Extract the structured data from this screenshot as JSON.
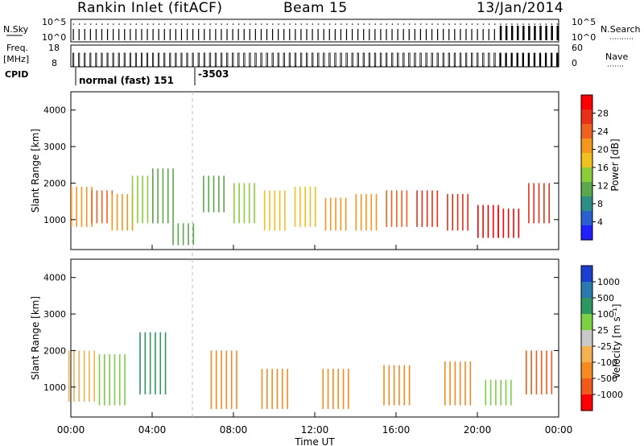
{
  "header": {
    "station": "Rankin Inlet (fitACF)",
    "beam": "Beam 15",
    "date": "13/Jan/2014"
  },
  "strips": {
    "nsky": {
      "label": "N.Sky",
      "ticks": [
        "10^5",
        "10^0"
      ],
      "right_ticks": [
        "10^5",
        "10^0"
      ],
      "right_label": "N.Search"
    },
    "freq": {
      "label": "Freq.",
      "unit": "[MHz]",
      "ticks": [
        "18",
        "8"
      ],
      "right_ticks": [
        "60",
        "0"
      ],
      "right_label": "Nave"
    },
    "cpid": {
      "label": "CPID",
      "mode1": "normal (fast) 151",
      "mode2": "-3503"
    }
  },
  "axes": {
    "y_label": "Slant Range [km]",
    "y_ticks": [
      "1000",
      "2000",
      "3000",
      "4000"
    ],
    "x_label": "Time UT",
    "x_ticks": [
      "00:00",
      "04:00",
      "08:00",
      "12:00",
      "16:00",
      "20:00",
      "00:00"
    ]
  },
  "power_scale": {
    "label": "Power [dB]",
    "ticks": [
      "28",
      "24",
      "20",
      "16",
      "12",
      "8",
      "4"
    ],
    "colors": [
      "#2020ff",
      "#2a5fd0",
      "#2d8e86",
      "#5aa84a",
      "#8ccd3a",
      "#f0c020",
      "#f5961e",
      "#f06020",
      "#e83018",
      "#ff0000"
    ]
  },
  "velocity_scale": {
    "label": "Velocity [m s⁻¹]",
    "ticks": [
      "1000",
      "500",
      "100",
      "25",
      "-25",
      "-100",
      "-500",
      "-1000"
    ],
    "colors": [
      "#1b3fd0",
      "#2a7ab0",
      "#2e9660",
      "#7bd044",
      "#c8c8c8",
      "#f5b050",
      "#f58a20",
      "#f05a1a",
      "#ff0000"
    ]
  },
  "chart_data": {
    "type": "heatmap",
    "x_range_hours": [
      0,
      24
    ],
    "y_range_km": [
      180,
      4500
    ],
    "mode_change_time": "06:00",
    "power_echoes": [
      {
        "t": 0.5,
        "r": [
          800,
          1900
        ],
        "p": 22
      },
      {
        "t": 1.5,
        "r": [
          900,
          1800
        ],
        "p": 24
      },
      {
        "t": 2.5,
        "r": [
          700,
          1700
        ],
        "p": 20
      },
      {
        "t": 3.5,
        "r": [
          900,
          2200
        ],
        "p": 14
      },
      {
        "t": 4.5,
        "r": [
          900,
          2400
        ],
        "p": 12
      },
      {
        "t": 5.5,
        "r": [
          300,
          900
        ],
        "p": 10
      },
      {
        "t": 7.0,
        "r": [
          1200,
          2200
        ],
        "p": 12
      },
      {
        "t": 8.5,
        "r": [
          900,
          2000
        ],
        "p": 14
      },
      {
        "t": 10.0,
        "r": [
          700,
          1800
        ],
        "p": 16
      },
      {
        "t": 11.5,
        "r": [
          800,
          1900
        ],
        "p": 18
      },
      {
        "t": 13.0,
        "r": [
          700,
          1600
        ],
        "p": 20
      },
      {
        "t": 14.5,
        "r": [
          700,
          1700
        ],
        "p": 22
      },
      {
        "t": 16.0,
        "r": [
          800,
          1800
        ],
        "p": 24
      },
      {
        "t": 17.5,
        "r": [
          800,
          1800
        ],
        "p": 26
      },
      {
        "t": 19.0,
        "r": [
          700,
          1700
        ],
        "p": 28
      },
      {
        "t": 20.5,
        "r": [
          500,
          1400
        ],
        "p": 30
      },
      {
        "t": 21.5,
        "r": [
          500,
          1300
        ],
        "p": 30
      },
      {
        "t": 23.0,
        "r": [
          900,
          2000
        ],
        "p": 26
      }
    ],
    "velocity_echoes": [
      {
        "t": 0.5,
        "r": [
          600,
          2000
        ],
        "v": -50
      },
      {
        "t": 2.0,
        "r": [
          500,
          1900
        ],
        "v": 50
      },
      {
        "t": 4.0,
        "r": [
          800,
          2500
        ],
        "v": 300
      },
      {
        "t": 7.5,
        "r": [
          400,
          2000
        ],
        "v": -200
      },
      {
        "t": 10.0,
        "r": [
          400,
          1500
        ],
        "v": -300
      },
      {
        "t": 13.0,
        "r": [
          400,
          1500
        ],
        "v": -300
      },
      {
        "t": 16.0,
        "r": [
          500,
          1600
        ],
        "v": -400
      },
      {
        "t": 19.0,
        "r": [
          500,
          1700
        ],
        "v": -300
      },
      {
        "t": 21.0,
        "r": [
          500,
          1200
        ],
        "v": 80
      },
      {
        "t": 23.0,
        "r": [
          800,
          2000
        ],
        "v": -600
      }
    ]
  }
}
